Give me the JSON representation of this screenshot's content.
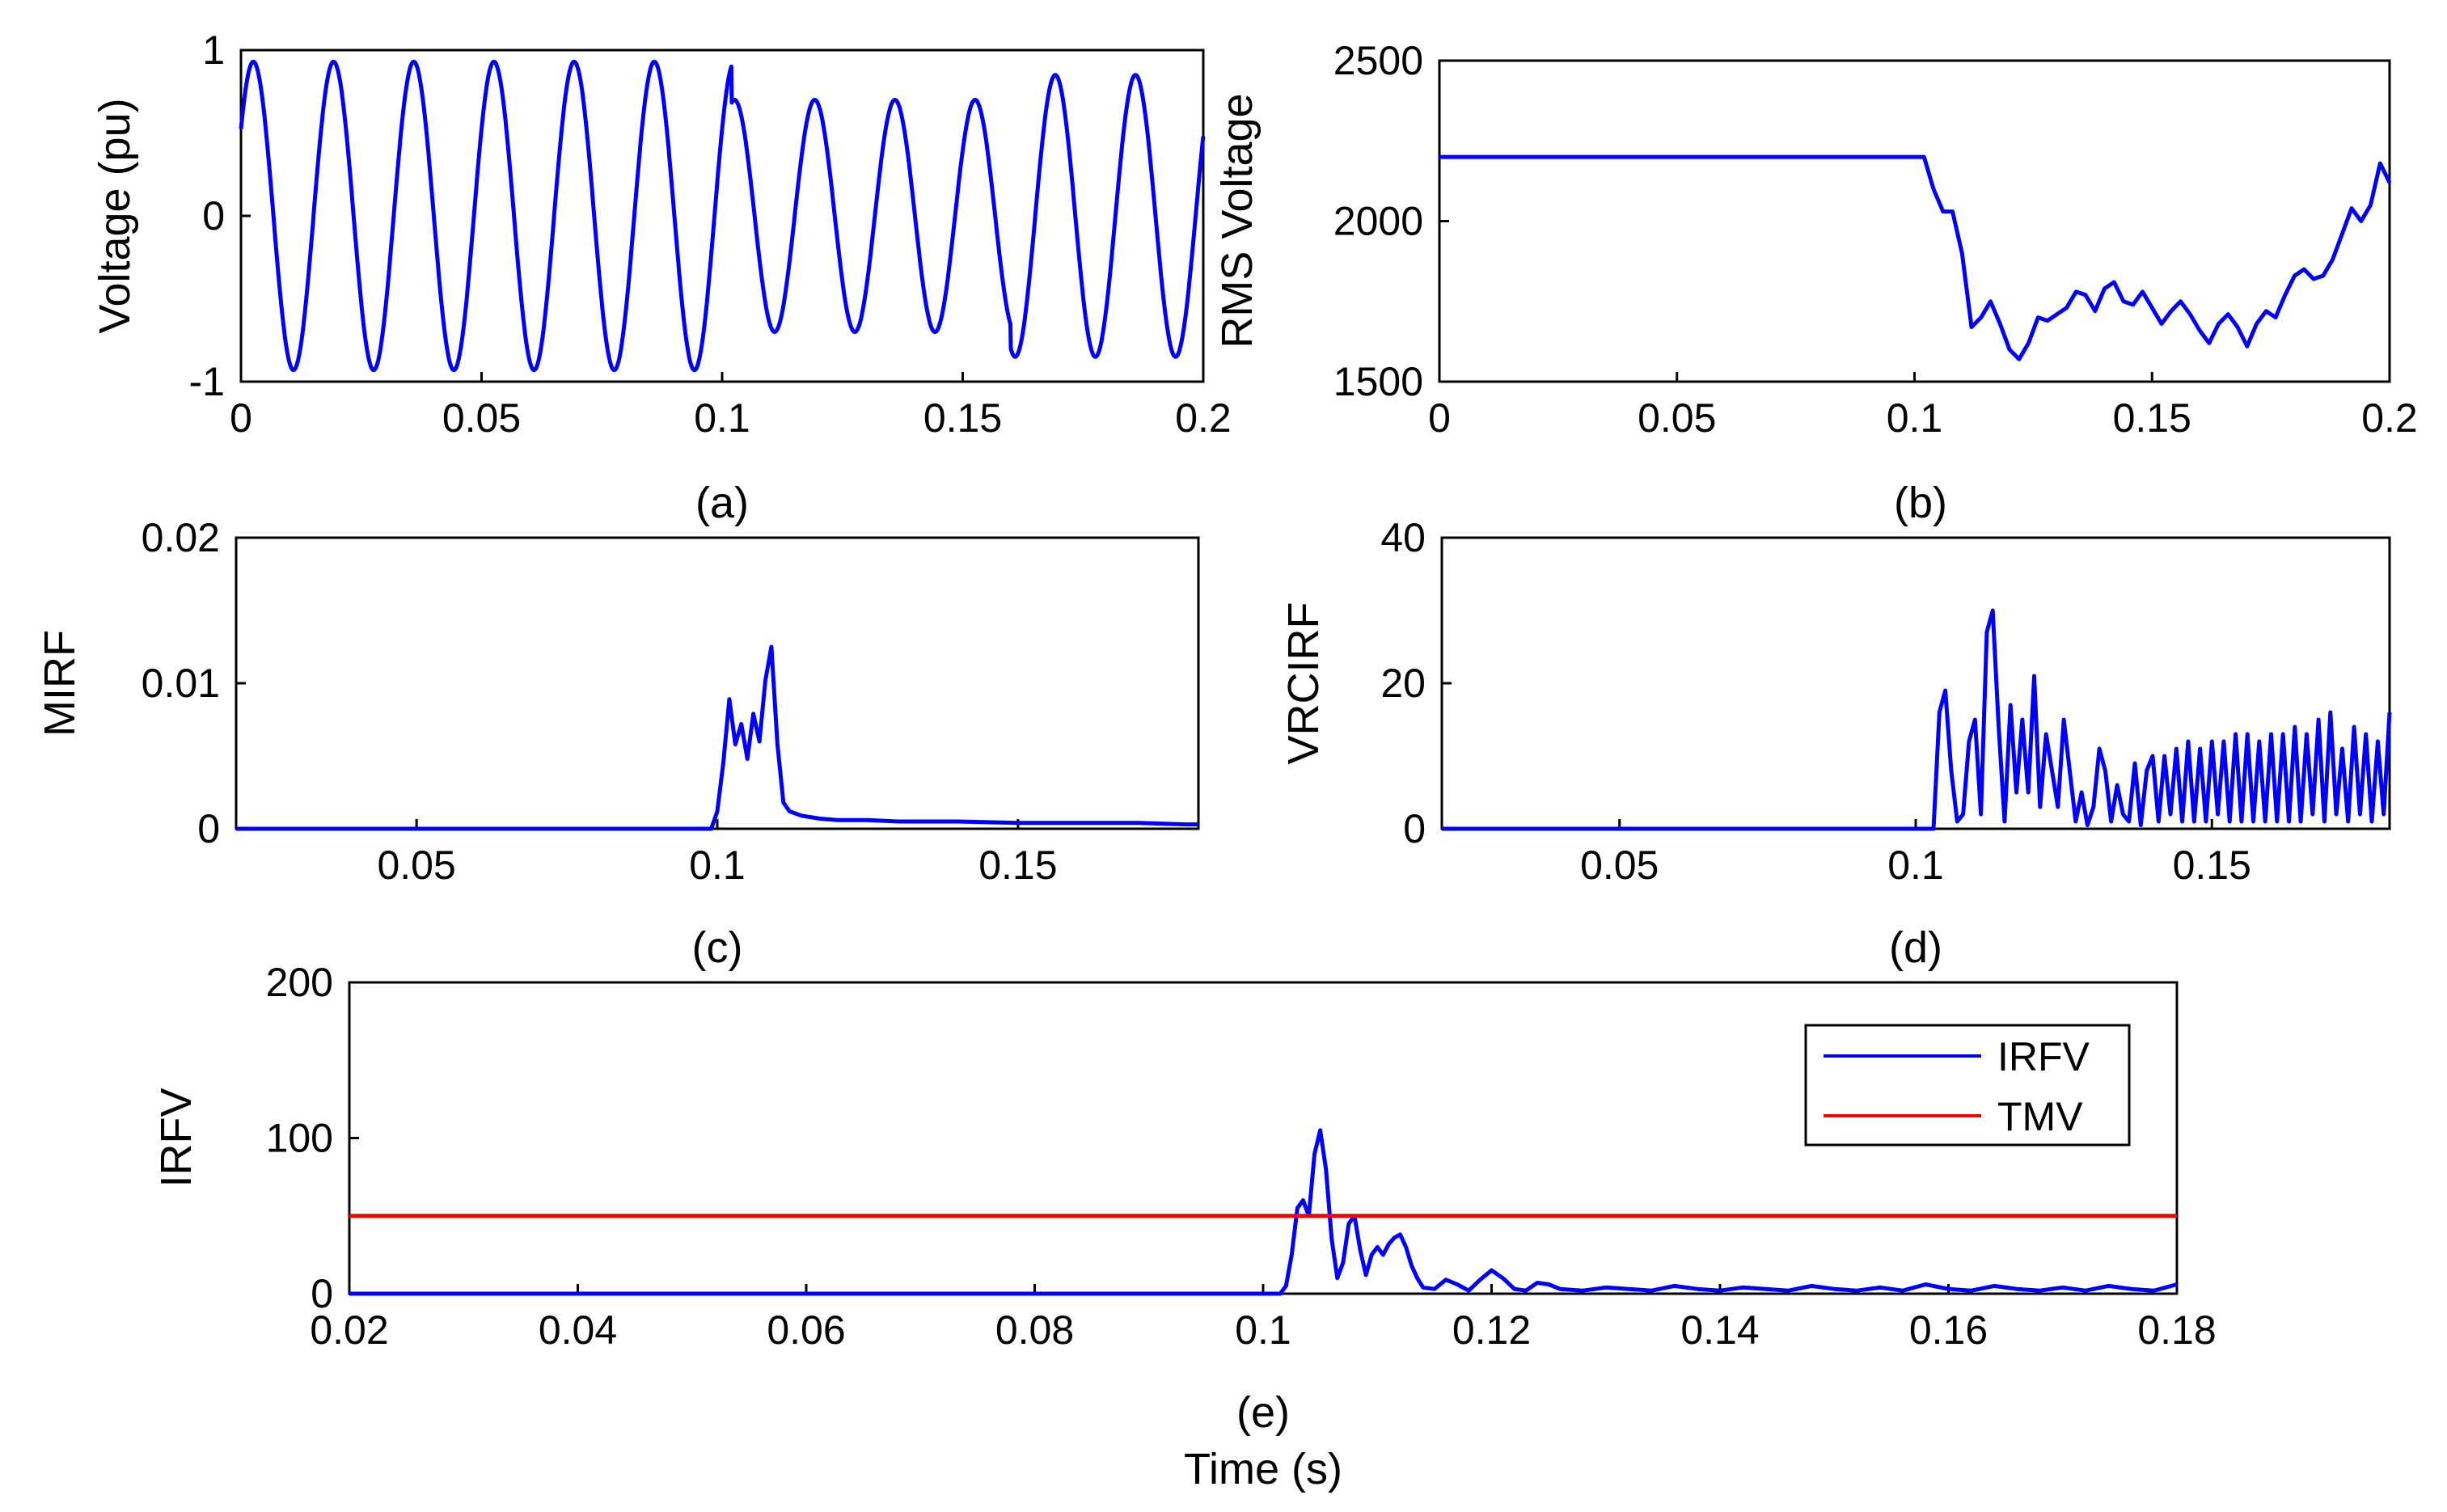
{
  "figure": {
    "xlabel": "Time (s)"
  },
  "colors": {
    "series": "#0000ff",
    "threshold": "#ff0000",
    "axis": "#000000"
  },
  "chart_data": [
    {
      "id": "a",
      "type": "line",
      "caption": "(a)",
      "ylabel": "Voltage (pu)",
      "xlabel": "",
      "xlim": [
        0,
        0.2
      ],
      "ylim": [
        -1,
        1
      ],
      "xticks": [
        0,
        0.05,
        0.1,
        0.15,
        0.2
      ],
      "xtick_labels": [
        "0",
        "0.05",
        "0.1",
        "0.15",
        "0.2"
      ],
      "yticks": [
        -1,
        0,
        1
      ],
      "ytick_labels": [
        "-1",
        "0",
        "1"
      ],
      "series": [
        {
          "name": "Voltage",
          "color": "#0000ff",
          "kind": "sine",
          "frequency_hz": 60,
          "phase_rad": 0.6,
          "amplitude_segments": [
            [
              0,
              0.102,
              0.93
            ],
            [
              0.102,
              0.16,
              0.7
            ],
            [
              0.16,
              0.2,
              0.85
            ]
          ]
        }
      ]
    },
    {
      "id": "b",
      "type": "line",
      "caption": "(b)",
      "ylabel": "RMS Voltage",
      "xlabel": "",
      "xlim": [
        0,
        0.2
      ],
      "ylim": [
        1500,
        2500
      ],
      "xticks": [
        0,
        0.05,
        0.1,
        0.15,
        0.2
      ],
      "xtick_labels": [
        "0",
        "0.05",
        "0.1",
        "0.15",
        "0.2"
      ],
      "yticks": [
        1500,
        2000,
        2500
      ],
      "ytick_labels": [
        "1500",
        "2000",
        "2500"
      ],
      "series": [
        {
          "name": "RMS Voltage",
          "color": "#0000ff",
          "x": [
            0,
            0.102,
            0.104,
            0.106,
            0.108,
            0.11,
            0.112,
            0.114,
            0.116,
            0.118,
            0.12,
            0.122,
            0.124,
            0.126,
            0.128,
            0.13,
            0.132,
            0.134,
            0.136,
            0.138,
            0.14,
            0.142,
            0.144,
            0.146,
            0.148,
            0.15,
            0.152,
            0.154,
            0.156,
            0.158,
            0.16,
            0.162,
            0.164,
            0.166,
            0.168,
            0.17,
            0.172,
            0.174,
            0.176,
            0.178,
            0.18,
            0.182,
            0.184,
            0.186,
            0.188,
            0.19,
            0.192,
            0.194,
            0.196,
            0.198,
            0.2
          ],
          "y": [
            2200,
            2200,
            2100,
            2030,
            2030,
            1900,
            1670,
            1700,
            1750,
            1680,
            1600,
            1570,
            1620,
            1700,
            1690,
            1710,
            1730,
            1780,
            1770,
            1720,
            1790,
            1810,
            1750,
            1740,
            1780,
            1730,
            1680,
            1720,
            1750,
            1710,
            1660,
            1620,
            1680,
            1710,
            1670,
            1610,
            1680,
            1720,
            1700,
            1770,
            1830,
            1850,
            1820,
            1830,
            1880,
            1960,
            2040,
            2000,
            2050,
            2180,
            2120
          ]
        }
      ]
    },
    {
      "id": "c",
      "type": "line",
      "caption": "(c)",
      "ylabel": "MIRF",
      "xlabel": "",
      "xlim": [
        0.02,
        0.18
      ],
      "ylim": [
        0,
        0.02
      ],
      "xticks": [
        0.05,
        0.1,
        0.15
      ],
      "xtick_labels": [
        "0.05",
        "0.1",
        "0.15"
      ],
      "yticks": [
        0,
        0.01,
        0.02
      ],
      "ytick_labels": [
        "0",
        "0.01",
        "0.02"
      ],
      "series": [
        {
          "name": "MIRF",
          "color": "#0000ff",
          "x": [
            0.02,
            0.099,
            0.1,
            0.101,
            0.102,
            0.103,
            0.104,
            0.105,
            0.106,
            0.107,
            0.108,
            0.109,
            0.11,
            0.111,
            0.112,
            0.114,
            0.117,
            0.12,
            0.125,
            0.13,
            0.14,
            0.15,
            0.16,
            0.17,
            0.178,
            0.18
          ],
          "y": [
            0,
            0,
            0.0012,
            0.0045,
            0.0089,
            0.0058,
            0.0072,
            0.0048,
            0.0079,
            0.006,
            0.0102,
            0.0125,
            0.0058,
            0.0018,
            0.0012,
            0.0009,
            0.0007,
            0.0006,
            0.0006,
            0.0005,
            0.0005,
            0.0004,
            0.0004,
            0.0004,
            0.0003,
            0.0003
          ]
        }
      ]
    },
    {
      "id": "d",
      "type": "line",
      "caption": "(d)",
      "ylabel": "VRCIRF",
      "xlabel": "",
      "xlim": [
        0.02,
        0.18
      ],
      "ylim": [
        0,
        40
      ],
      "xticks": [
        0.05,
        0.1,
        0.15
      ],
      "xtick_labels": [
        "0.05",
        "0.1",
        "0.15"
      ],
      "yticks": [
        0,
        20,
        40
      ],
      "ytick_labels": [
        "0",
        "20",
        "40"
      ],
      "series": [
        {
          "name": "VRCIRF",
          "color": "#0000ff",
          "x": [
            0.02,
            0.102,
            0.103,
            0.104,
            0.105,
            0.106,
            0.107,
            0.108,
            0.109,
            0.11,
            0.111,
            0.112,
            0.113,
            0.114,
            0.115,
            0.116,
            0.117,
            0.118,
            0.119,
            0.12,
            0.121,
            0.122,
            0.123,
            0.124,
            0.125,
            0.126,
            0.127,
            0.128,
            0.129,
            0.13,
            0.131,
            0.132,
            0.133,
            0.134,
            0.135,
            0.136,
            0.137,
            0.138,
            0.139,
            0.14,
            0.141,
            0.142,
            0.143,
            0.144,
            0.145,
            0.146,
            0.147,
            0.148,
            0.149,
            0.15,
            0.151,
            0.152,
            0.153,
            0.154,
            0.155,
            0.156,
            0.157,
            0.158,
            0.159,
            0.16,
            0.161,
            0.162,
            0.163,
            0.164,
            0.165,
            0.166,
            0.167,
            0.168,
            0.169,
            0.17,
            0.171,
            0.172,
            0.173,
            0.174,
            0.175,
            0.176,
            0.177,
            0.178,
            0.179,
            0.18
          ],
          "y": [
            0,
            0,
            0,
            16,
            19,
            8,
            1,
            2,
            12,
            15,
            2,
            27,
            30,
            14,
            1,
            17,
            5,
            15,
            5,
            21,
            3,
            13,
            8,
            3,
            15,
            8,
            1,
            5,
            0.5,
            3,
            11,
            8,
            1,
            6,
            2,
            1,
            9,
            0.5,
            8,
            10,
            1,
            10,
            2,
            11,
            1,
            12,
            1,
            11,
            1,
            12,
            2,
            12,
            1,
            13,
            1,
            13,
            1,
            12,
            1,
            13,
            1,
            13,
            1,
            14,
            1,
            13,
            2,
            15,
            1,
            16,
            2,
            11,
            1,
            14,
            2,
            13,
            1,
            12,
            2,
            16
          ]
        }
      ]
    },
    {
      "id": "e",
      "type": "line",
      "caption": "(e)",
      "ylabel": "IRFV",
      "xlabel": "Time (s)",
      "xlim": [
        0.02,
        0.18
      ],
      "ylim": [
        0,
        200
      ],
      "xticks": [
        0.02,
        0.04,
        0.06,
        0.08,
        0.1,
        0.12,
        0.14,
        0.16,
        0.18
      ],
      "xtick_labels": [
        "0.02",
        "0.04",
        "0.06",
        "0.08",
        "0.1",
        "0.12",
        "0.14",
        "0.16",
        "0.18"
      ],
      "yticks": [
        0,
        100,
        200
      ],
      "ytick_labels": [
        "0",
        "100",
        "200"
      ],
      "legend": [
        "IRFV",
        "TMV"
      ],
      "legend_position": "top-right",
      "series": [
        {
          "name": "IRFV",
          "color": "#0000ff",
          "x": [
            0.02,
            0.1015,
            0.102,
            0.1025,
            0.103,
            0.1035,
            0.104,
            0.1045,
            0.105,
            0.1055,
            0.106,
            0.1065,
            0.107,
            0.1075,
            0.108,
            0.1085,
            0.109,
            0.1095,
            0.11,
            0.1105,
            0.111,
            0.1115,
            0.112,
            0.1125,
            0.113,
            0.1135,
            0.114,
            0.115,
            0.116,
            0.117,
            0.118,
            0.119,
            0.12,
            0.121,
            0.122,
            0.123,
            0.124,
            0.125,
            0.126,
            0.128,
            0.13,
            0.132,
            0.134,
            0.136,
            0.138,
            0.14,
            0.142,
            0.144,
            0.146,
            0.148,
            0.15,
            0.152,
            0.154,
            0.156,
            0.158,
            0.16,
            0.162,
            0.164,
            0.166,
            0.168,
            0.17,
            0.172,
            0.174,
            0.176,
            0.178,
            0.18
          ],
          "y": [
            0,
            0,
            5,
            25,
            55,
            60,
            50,
            90,
            105,
            80,
            35,
            10,
            20,
            45,
            50,
            28,
            12,
            25,
            30,
            25,
            32,
            36,
            38,
            30,
            18,
            10,
            4,
            3,
            9,
            6,
            2,
            9,
            15,
            10,
            3,
            2,
            7,
            6,
            3,
            2,
            4,
            3,
            2,
            5,
            3,
            2,
            4,
            3,
            2,
            5,
            3,
            2,
            4,
            2,
            6,
            3,
            2,
            5,
            3,
            2,
            4,
            2,
            5,
            3,
            2,
            6
          ]
        },
        {
          "name": "TMV",
          "color": "#ff0000",
          "x": [
            0.02,
            0.18
          ],
          "y": [
            50,
            50
          ]
        }
      ]
    }
  ]
}
